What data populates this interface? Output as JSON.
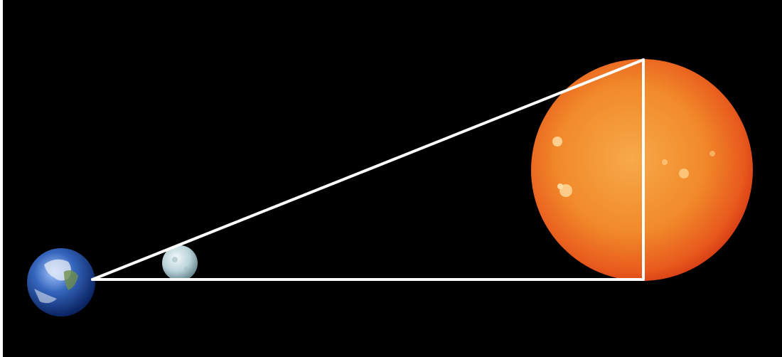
{
  "scene": {
    "background_color": "#000000",
    "line_color": "#ffffff",
    "bodies": [
      {
        "name": "earth",
        "icon": "earth-icon",
        "colors": [
          "#9fc3ff",
          "#2f5fb8",
          "#0c2a6b"
        ]
      },
      {
        "name": "moon",
        "icon": "moon-icon",
        "colors": [
          "#eef6f8",
          "#b9d3d8",
          "#6f8c93"
        ]
      },
      {
        "name": "sun",
        "icon": "sun-icon",
        "colors": [
          "#f5a640",
          "#f07d24",
          "#e13b18"
        ]
      }
    ]
  }
}
